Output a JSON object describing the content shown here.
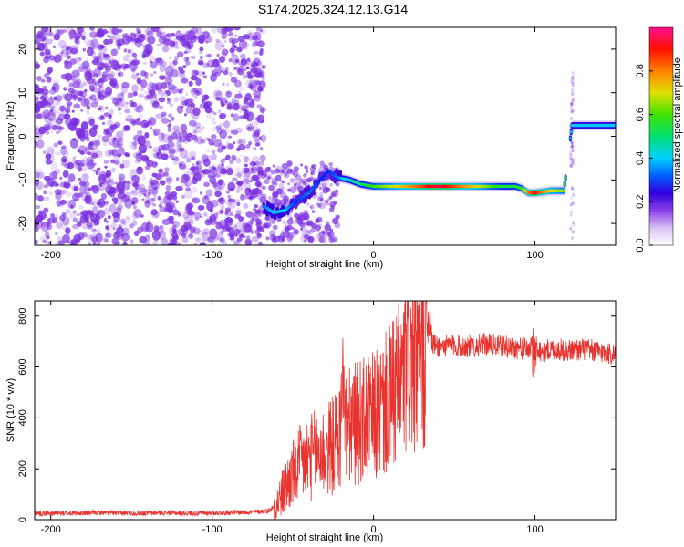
{
  "title": "S174.2025.324.12.13.G14",
  "colors": {
    "snr_line": "#e8332f",
    "scatter_noise": "#7b2fe0",
    "colormap": [
      "#f2eaf8",
      "#a570ec",
      "#3a00d8",
      "#0028ff",
      "#00c8ff",
      "#00e080",
      "#30e000",
      "#d8e000",
      "#ff8000",
      "#ff0000",
      "#ff1080"
    ]
  },
  "chart_data": [
    {
      "type": "heatmap",
      "xlabel": "Height of straight line (km)",
      "ylabel": "Frequency (Hz)",
      "xlim": [
        -210,
        150
      ],
      "ylim": [
        -25,
        25
      ],
      "xticks": [
        -200,
        -100,
        0,
        100
      ],
      "yticks": [
        -20,
        -10,
        0,
        10,
        20
      ],
      "colorbar": {
        "label": "Normalized spectral amplitude",
        "range": [
          0,
          1
        ],
        "ticks": [
          0.0,
          0.2,
          0.4,
          0.6,
          0.8
        ]
      },
      "track": {
        "x": [
          -68,
          -62,
          -55,
          -48,
          -40,
          -33,
          -28,
          -22,
          -15,
          -8,
          0,
          20,
          40,
          60,
          80,
          88,
          92,
          96,
          100,
          110,
          118,
          123,
          128,
          140,
          150
        ],
        "y": [
          -16,
          -17.5,
          -17,
          -15,
          -13,
          -10,
          -8,
          -9.5,
          -10,
          -11,
          -11.5,
          -11.5,
          -11.5,
          -11.5,
          -11.5,
          -11.5,
          -12,
          -13,
          -13,
          -12.5,
          -12.5,
          2.5,
          2.5,
          2.5,
          2.5
        ],
        "amplitude": [
          0.35,
          0.4,
          0.4,
          0.3,
          0.35,
          0.3,
          0.3,
          0.35,
          0.45,
          0.5,
          0.6,
          0.75,
          0.95,
          0.75,
          0.55,
          0.55,
          0.6,
          0.8,
          0.9,
          0.7,
          0.65,
          0.4,
          0.4,
          0.4,
          0.4
        ]
      }
    },
    {
      "type": "line",
      "xlabel": "Height of straight line (km)",
      "ylabel": "SNR (10 * v/v)",
      "xlim": [
        -210,
        150
      ],
      "ylim": [
        0,
        860
      ],
      "xticks": [
        -200,
        -100,
        0,
        100
      ],
      "yticks": [
        0,
        200,
        400,
        600,
        800
      ],
      "series": [
        {
          "x": [
            -210,
            -190,
            -170,
            -150,
            -130,
            -110,
            -90,
            -75,
            -65,
            -60,
            -55,
            -50,
            -45,
            -40,
            -35,
            -30,
            -25,
            -20,
            -15,
            -10,
            -5,
            0,
            5,
            10,
            15,
            20,
            25,
            30,
            35,
            40,
            50,
            60,
            70,
            80,
            90,
            95,
            100,
            105,
            110,
            120,
            130,
            140,
            150
          ],
          "y": [
            25,
            25,
            28,
            25,
            27,
            25,
            28,
            30,
            35,
            60,
            120,
            180,
            220,
            240,
            260,
            270,
            290,
            350,
            360,
            380,
            390,
            400,
            430,
            470,
            520,
            580,
            620,
            650,
            700,
            680,
            685,
            680,
            690,
            680,
            675,
            670,
            680,
            660,
            670,
            665,
            670,
            660,
            650
          ]
        }
      ]
    }
  ]
}
